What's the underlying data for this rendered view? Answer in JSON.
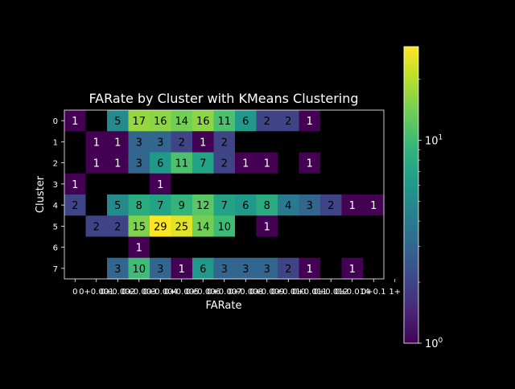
{
  "chart_data": {
    "type": "heatmap",
    "title": "FARate by Cluster with KMeans Clustering",
    "xlabel": "FARate",
    "ylabel": "Cluster",
    "x_categories": [
      "0",
      "0+0.001",
      "0+0.002",
      "0+0.003",
      "0+0.004",
      "0+0.005",
      "0+0.006",
      "0+0.007",
      "0+0.008",
      "0+0.009",
      "0+0.010",
      "0+0.011",
      "0+0.012",
      "0+0.014",
      "0+0.1",
      "1+"
    ],
    "x_tick_labels_drawn": [
      "0",
      "0+0.001",
      "0+0.002",
      "0+0.003",
      "0+0.004",
      "0+0.005",
      "0+0.006",
      "0+0.007",
      "0+0.008",
      "0+0.009",
      "0+0.010",
      "0+0.011",
      "0+0.012",
      "0+0.014",
      "0+0.1",
      "1+"
    ],
    "y_categories": [
      "0",
      "1",
      "2",
      "3",
      "4",
      "5",
      "6",
      "7"
    ],
    "values": [
      [
        1,
        null,
        5,
        17,
        16,
        14,
        16,
        11,
        6,
        2,
        2,
        1,
        null,
        null,
        null,
        null
      ],
      [
        null,
        1,
        1,
        3,
        3,
        2,
        1,
        2,
        null,
        null,
        null,
        null,
        null,
        null,
        null,
        null
      ],
      [
        null,
        1,
        1,
        3,
        6,
        11,
        7,
        2,
        1,
        1,
        null,
        1,
        null,
        null,
        null,
        null
      ],
      [
        1,
        null,
        null,
        null,
        1,
        null,
        null,
        null,
        null,
        null,
        null,
        null,
        null,
        null,
        null,
        null
      ],
      [
        2,
        null,
        5,
        8,
        7,
        9,
        12,
        7,
        6,
        8,
        4,
        3,
        2,
        1,
        1,
        null
      ],
      [
        null,
        2,
        2,
        15,
        29,
        25,
        14,
        10,
        null,
        1,
        null,
        null,
        null,
        null,
        null,
        null
      ],
      [
        null,
        null,
        null,
        1,
        null,
        null,
        null,
        null,
        null,
        null,
        null,
        null,
        null,
        null,
        null,
        null
      ],
      [
        null,
        null,
        3,
        10,
        3,
        1,
        6,
        3,
        3,
        3,
        2,
        1,
        null,
        1,
        null,
        null
      ]
    ],
    "colormap": "viridis",
    "color_scale": "log",
    "vmin": 1,
    "vmax": 29,
    "colorbar_ticks": [
      {
        "value": 1,
        "base": "10",
        "exp": "0"
      },
      {
        "value": 10,
        "base": "10",
        "exp": "1"
      }
    ],
    "annotation_colors": {
      "on_dark": "#ffffff",
      "on_light": "#000000"
    },
    "empty_cell_color": "#000000",
    "background": "#000000",
    "foreground": "#ffffff"
  }
}
